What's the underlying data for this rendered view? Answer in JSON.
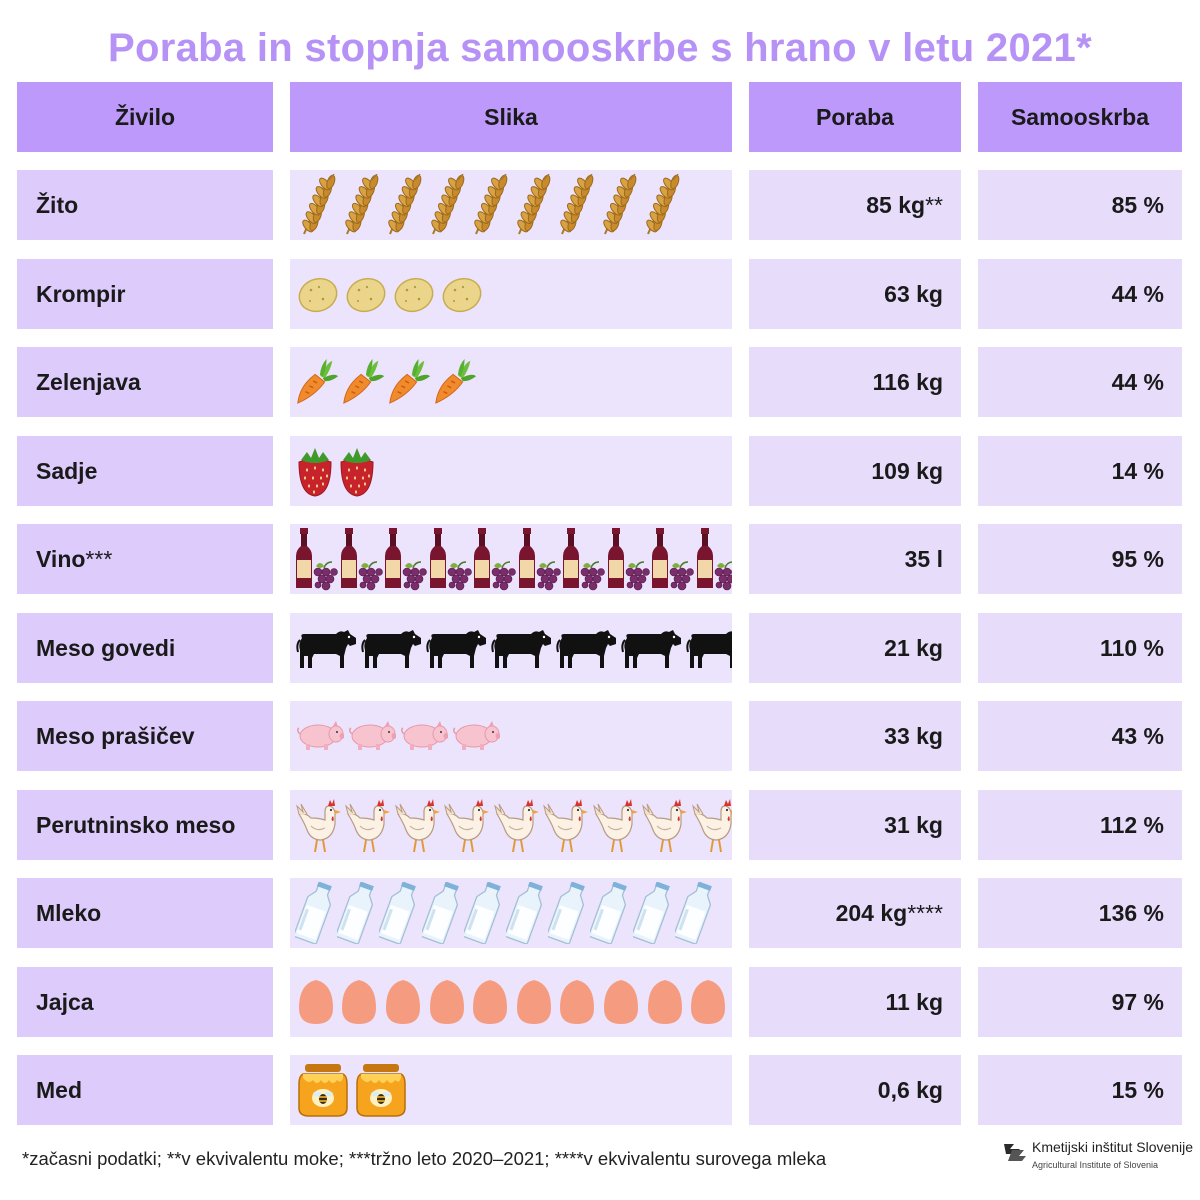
{
  "title": "Poraba in stopnja samooskrbe s hrano v letu 2021*",
  "headers": {
    "name": "Živilo",
    "picture": "Slika",
    "poraba": "Poraba",
    "samooskrba": "Samooskrba"
  },
  "rows": [
    {
      "name": "Žito",
      "name_note": "",
      "icon": "wheat-icon",
      "count": 9,
      "poraba": "85 kg",
      "poraba_note": "**",
      "samooskrba": "85 %"
    },
    {
      "name": "Krompir",
      "name_note": "",
      "icon": "potato-icon",
      "count": 4,
      "poraba": "63 kg",
      "poraba_note": "",
      "samooskrba": "44 %"
    },
    {
      "name": "Zelenjava",
      "name_note": "",
      "icon": "carrot-icon",
      "count": 4,
      "poraba": "116 kg",
      "poraba_note": "",
      "samooskrba": "44 %"
    },
    {
      "name": "Sadje",
      "name_note": "",
      "icon": "strawberry-icon",
      "count": 2,
      "poraba": "109 kg",
      "poraba_note": "",
      "samooskrba": "14 %"
    },
    {
      "name": "Vino",
      "name_note": "***",
      "icon": "wine-icon",
      "count": 10,
      "poraba": "35 l",
      "poraba_note": "",
      "samooskrba": "95 %"
    },
    {
      "name": "Meso govedi",
      "name_note": "",
      "icon": "cow-icon",
      "count": 7,
      "poraba": "21 kg",
      "poraba_note": "",
      "samooskrba": "110 %"
    },
    {
      "name": "Meso prašičev",
      "name_note": "",
      "icon": "pig-icon",
      "count": 4,
      "poraba": "33 kg",
      "poraba_note": "",
      "samooskrba": "43 %"
    },
    {
      "name": "Perutninsko meso",
      "name_note": "",
      "icon": "chicken-icon",
      "count": 9,
      "poraba": "31 kg",
      "poraba_note": "",
      "samooskrba": "112 %"
    },
    {
      "name": "Mleko",
      "name_note": "",
      "icon": "milk-bottle-icon",
      "count": 10,
      "poraba": "204 kg",
      "poraba_note": "****",
      "samooskrba": "136 %"
    },
    {
      "name": "Jajca",
      "name_note": "",
      "icon": "egg-icon",
      "count": 10,
      "poraba": "11 kg",
      "poraba_note": "",
      "samooskrba": "97 %"
    },
    {
      "name": "Med",
      "name_note": "",
      "icon": "honey-pot-icon",
      "count": 2,
      "poraba": "0,6 kg",
      "poraba_note": "",
      "samooskrba": "15 %"
    }
  ],
  "footnote": "*začasni podatki; **v ekvivalentu moke; ***tržno leto 2020–2021; ****v ekvivalentu surovega mleka",
  "logo": {
    "name": "Kmetijski inštitut Slovenije",
    "subtitle": "Agricultural Institute of Slovenia",
    "icon": "institute-logo-icon"
  },
  "colors": {
    "title": "#b692f6",
    "header": "#bc99fb",
    "name_cell": "#dccbfb",
    "picture_cell": "#ece3fc",
    "value_cell": "#e7ddfb"
  }
}
